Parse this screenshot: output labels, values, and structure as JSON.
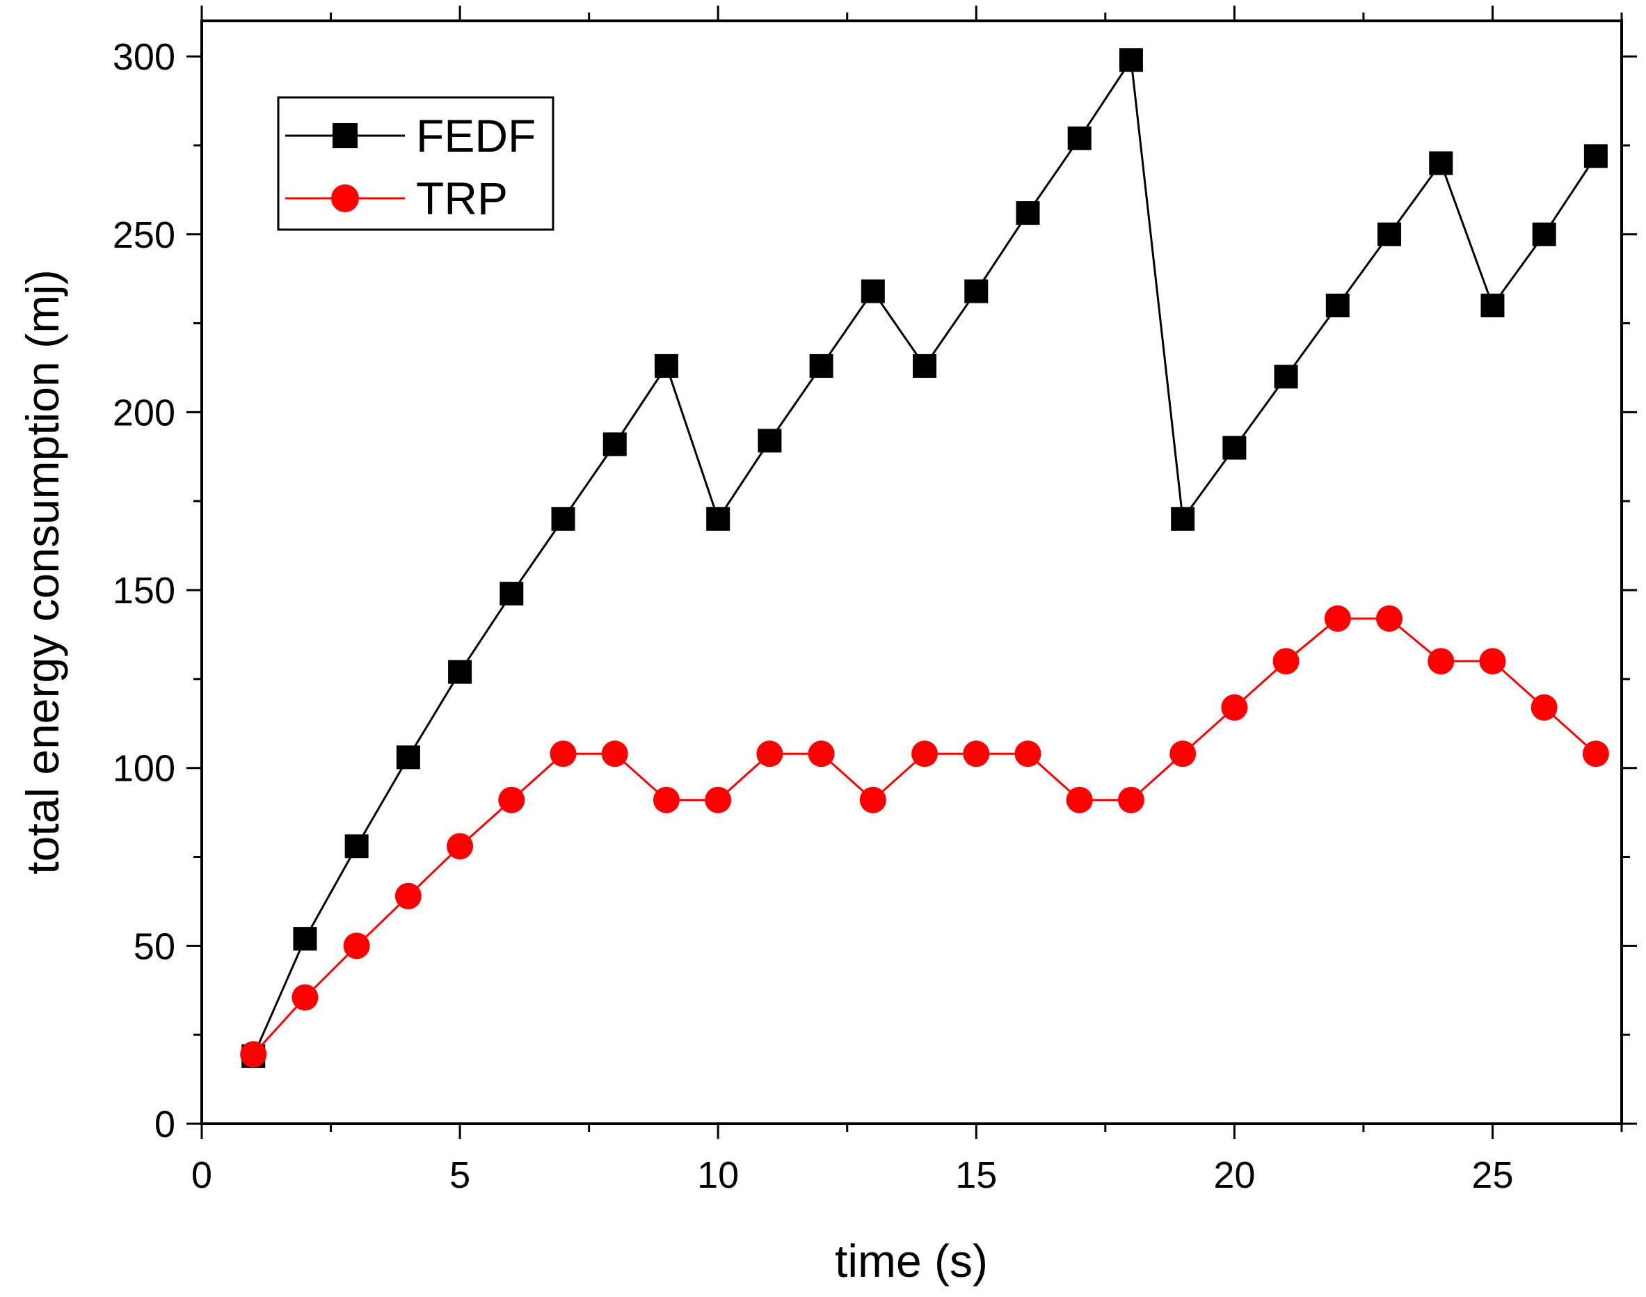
{
  "chart_data": {
    "type": "line",
    "title": "",
    "xlabel": "time (s)",
    "ylabel": "total energy consumption (mj)",
    "xlim": [
      0,
      27.5
    ],
    "ylim": [
      0,
      310
    ],
    "xticks": [
      0,
      5,
      10,
      15,
      20,
      25
    ],
    "yticks": [
      0,
      50,
      100,
      150,
      200,
      250,
      300
    ],
    "xtick_labels": [
      "0",
      "5",
      "10",
      "15",
      "20",
      "25"
    ],
    "ytick_labels": [
      "0",
      "50",
      "100",
      "150",
      "200",
      "250",
      "300"
    ],
    "minor_xticks": [
      2.5,
      7.5,
      12.5,
      17.5,
      22.5,
      27.5
    ],
    "minor_yticks": [
      25,
      75,
      125,
      175,
      225,
      275
    ],
    "grid": false,
    "legend_position": "top-left",
    "x": [
      1,
      2,
      3,
      4,
      5,
      6,
      7,
      8,
      9,
      10,
      11,
      12,
      13,
      14,
      15,
      16,
      17,
      18,
      19,
      20,
      21,
      22,
      23,
      24,
      25,
      26,
      27
    ],
    "series": [
      {
        "name": "FEDF",
        "color": "#000000",
        "marker": "square",
        "values": [
          19,
          52,
          78,
          103,
          127,
          149,
          170,
          191,
          213,
          170,
          192,
          213,
          234,
          213,
          234,
          256,
          277,
          299,
          170,
          190,
          210,
          230,
          250,
          270,
          230,
          250,
          272
        ]
      },
      {
        "name": "TRP",
        "color": "#ff0000",
        "marker": "circle",
        "values": [
          19.5,
          35.5,
          50,
          64,
          78,
          91,
          104,
          104,
          91,
          91,
          104,
          104,
          91,
          104,
          104,
          104,
          91,
          91,
          104,
          117,
          130,
          142,
          142,
          130,
          130,
          117,
          104
        ]
      }
    ]
  }
}
